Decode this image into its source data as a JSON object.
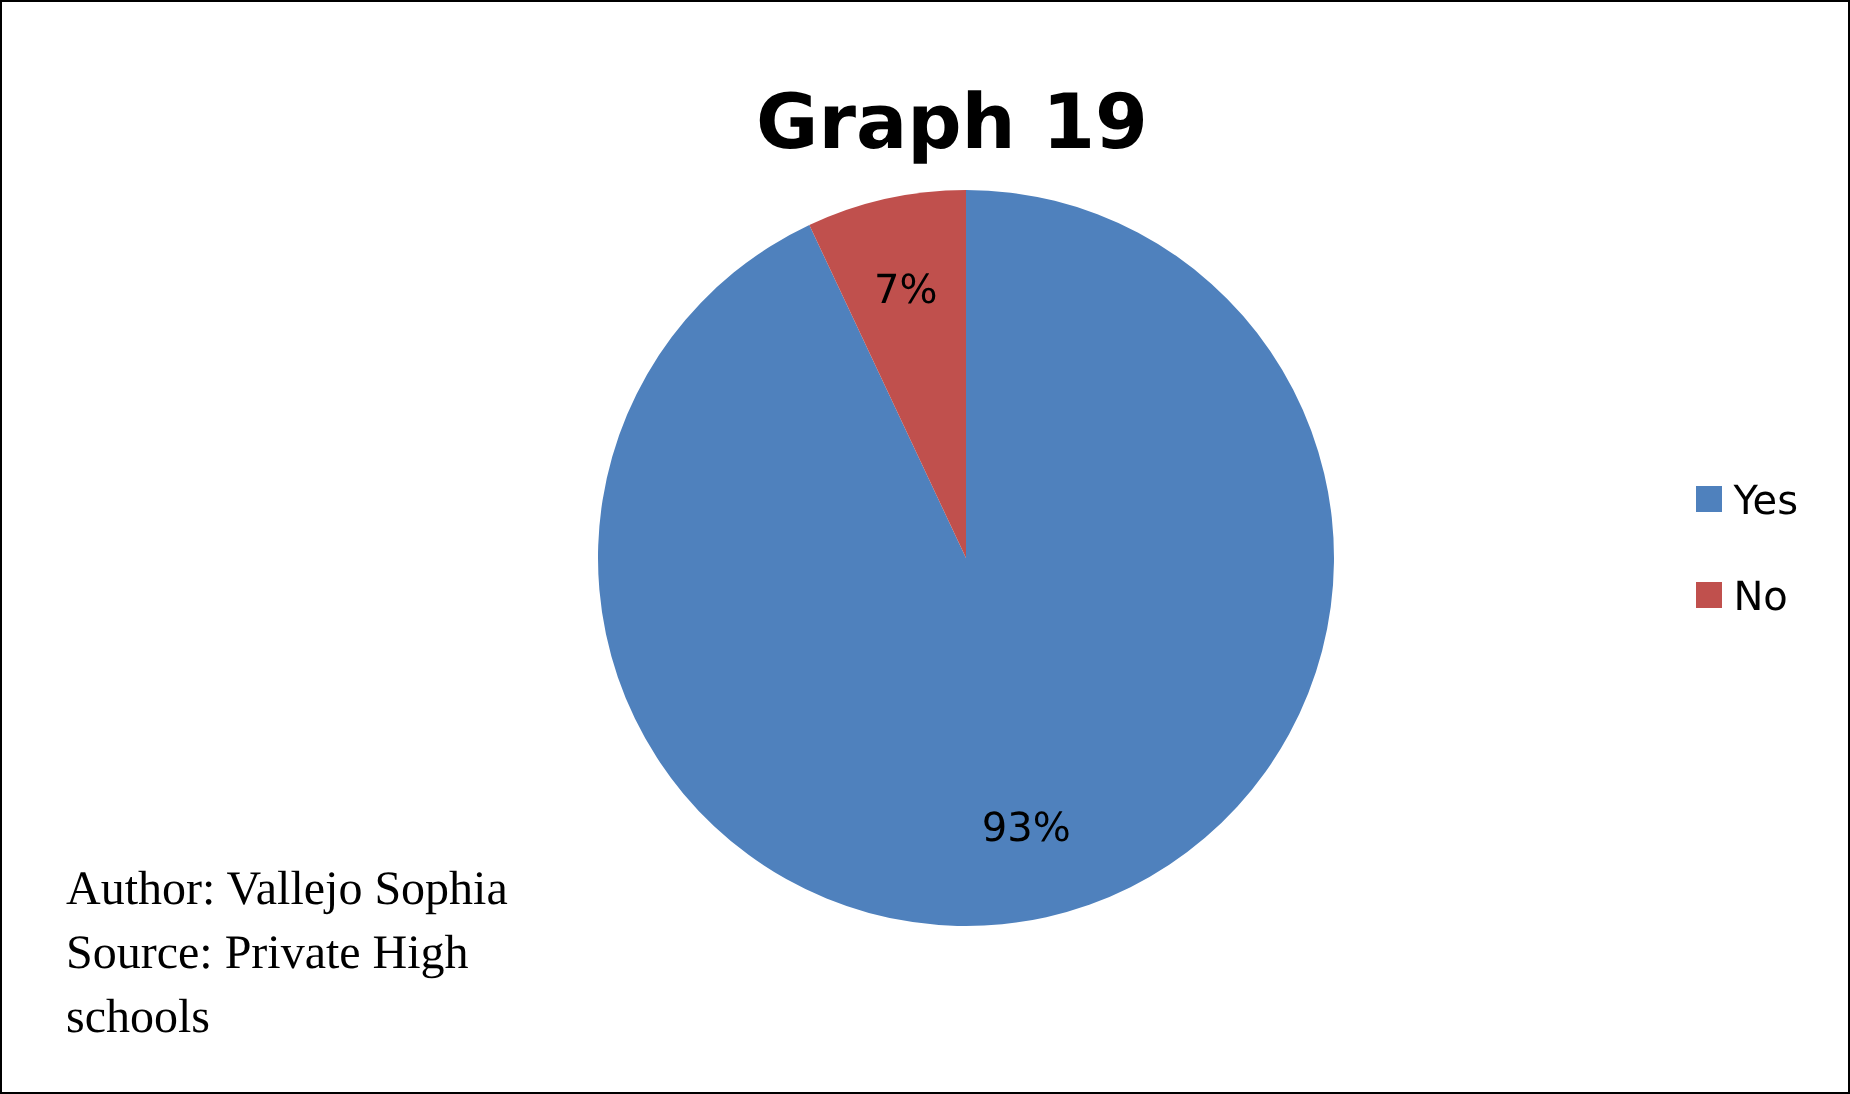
{
  "chart_data": {
    "type": "pie",
    "title": "Graph 19",
    "categories": [
      "Yes",
      "No"
    ],
    "values": [
      93,
      7
    ],
    "colors": [
      "#4f81bd",
      "#c0504d"
    ],
    "value_labels": [
      "93%",
      "7%"
    ],
    "legend": "right",
    "annotations": [
      "Author: Vallejo  Sophia",
      "Source: Private  High schools"
    ]
  }
}
